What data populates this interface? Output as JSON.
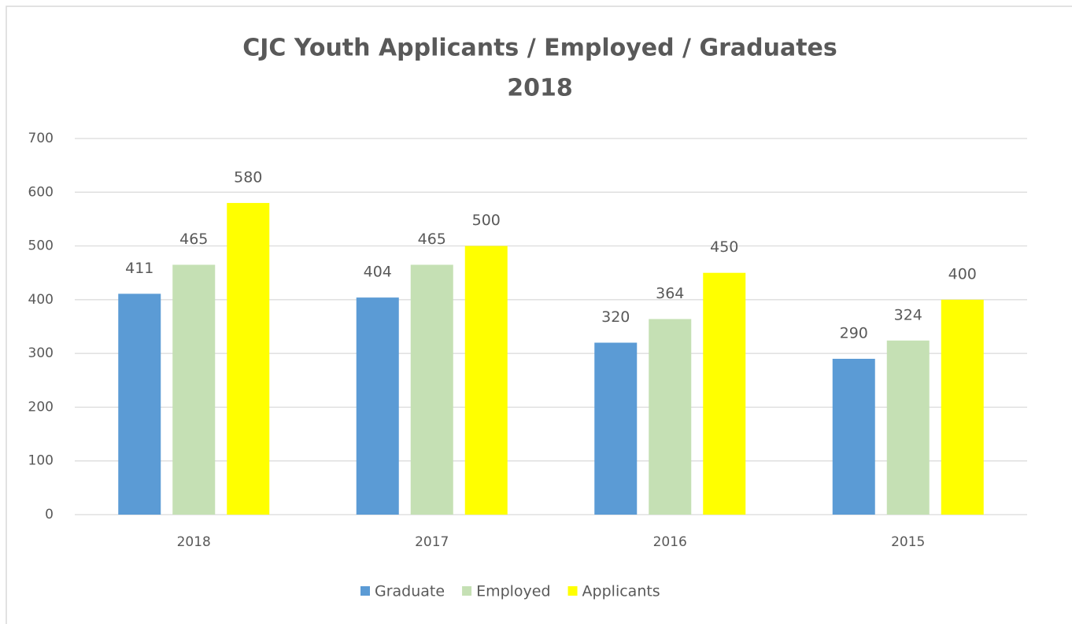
{
  "chart_data": {
    "type": "bar",
    "title": "CJC Youth Applicants / Employed / Graduates",
    "subtitle": "2018",
    "categories": [
      "2018",
      "2017",
      "2016",
      "2015"
    ],
    "series": [
      {
        "name": "Graduate",
        "color": "#5b9bd5",
        "values": [
          411,
          404,
          320,
          290
        ]
      },
      {
        "name": "Employed",
        "color": "#c5e0b4",
        "values": [
          465,
          465,
          364,
          324
        ]
      },
      {
        "name": "Applicants",
        "color": "#ffff00",
        "values": [
          580,
          500,
          450,
          400
        ]
      }
    ],
    "ylim": [
      0,
      700
    ],
    "yticks": [
      0,
      100,
      200,
      300,
      400,
      500,
      600,
      700
    ],
    "grid": true,
    "legend": "bottom",
    "data_labels": true
  }
}
